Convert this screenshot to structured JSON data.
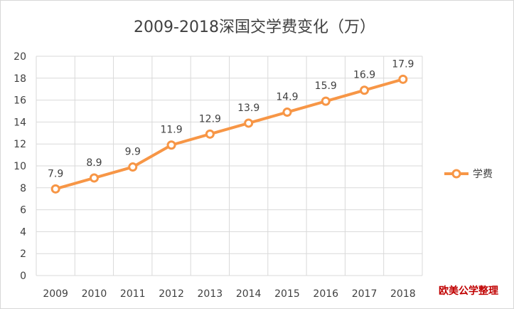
{
  "chart_data": {
    "type": "line",
    "title": "2009-2018深国交学费变化（万）",
    "categories": [
      "2009",
      "2010",
      "2011",
      "2012",
      "2013",
      "2014",
      "2015",
      "2016",
      "2017",
      "2018"
    ],
    "series": [
      {
        "name": "学费",
        "values": [
          7.9,
          8.9,
          9.9,
          11.9,
          12.9,
          13.9,
          14.9,
          15.9,
          16.9,
          17.9
        ],
        "labels": [
          "7.9",
          "8.9",
          "9.9",
          "11.9",
          "12.9",
          "13.9",
          "14.9",
          "15.9",
          "16.9",
          "17.9"
        ]
      }
    ],
    "ylim": [
      0,
      20
    ],
    "yticks": [
      0,
      2,
      4,
      6,
      8,
      10,
      12,
      14,
      16,
      18,
      20
    ],
    "yticks_labels": [
      "0",
      "2",
      "4",
      "6",
      "8",
      "10",
      "12",
      "14",
      "16",
      "18",
      "20"
    ],
    "grid": true,
    "legend_position": "right",
    "xlabel": "",
    "ylabel": ""
  },
  "colors": {
    "line": "#f79646",
    "grid": "#d9d9d9",
    "text": "#404040",
    "watermark": "#c00000"
  },
  "watermark": "欧美公学整理"
}
